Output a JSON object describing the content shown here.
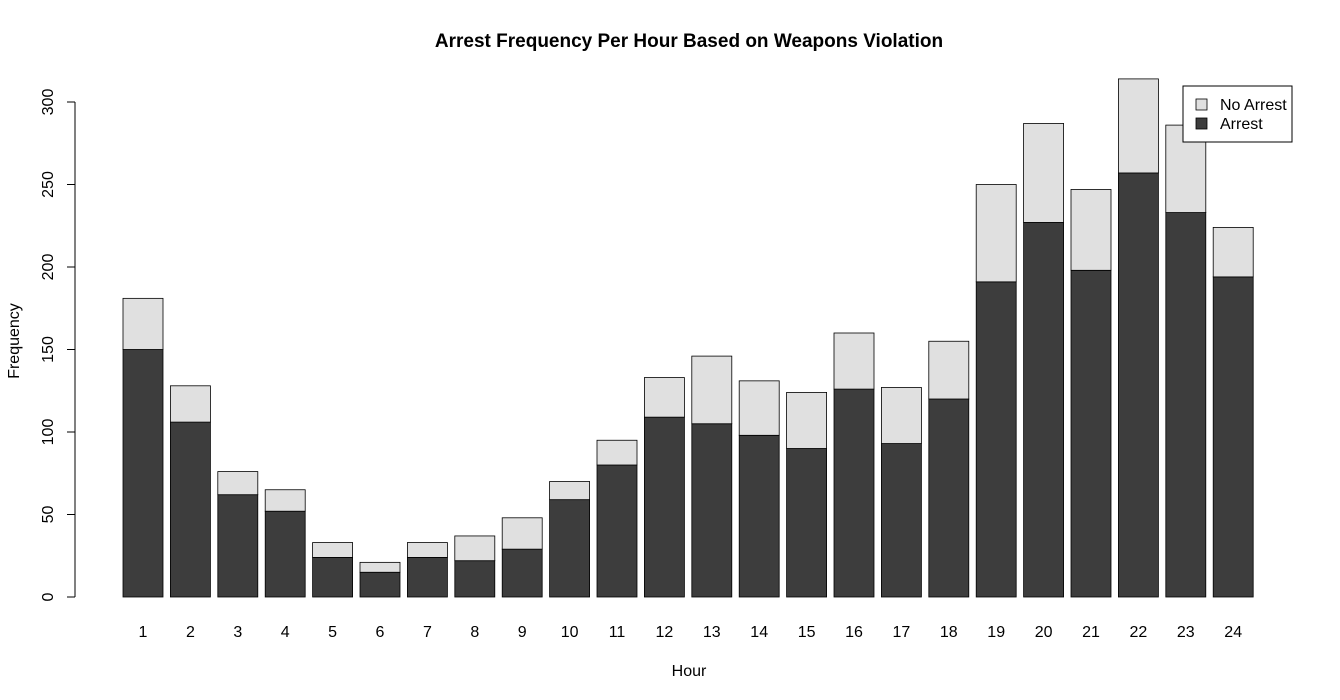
{
  "chart_data": {
    "type": "bar",
    "stacked": true,
    "title": "Arrest Frequency Per Hour Based on Weapons Violation",
    "xlabel": "Hour",
    "ylabel": "Frequency",
    "ylim": [
      0,
      315
    ],
    "yticks": [
      0,
      50,
      100,
      150,
      200,
      250,
      300
    ],
    "grid": false,
    "legend_position": "top-right",
    "categories": [
      "1",
      "2",
      "3",
      "4",
      "5",
      "6",
      "7",
      "8",
      "9",
      "10",
      "11",
      "12",
      "13",
      "14",
      "15",
      "16",
      "17",
      "18",
      "19",
      "20",
      "21",
      "22",
      "23",
      "24"
    ],
    "series": [
      {
        "name": "Arrest",
        "color": "#3d3d3d",
        "values": [
          150,
          106,
          62,
          52,
          24,
          15,
          24,
          22,
          29,
          59,
          80,
          109,
          105,
          98,
          90,
          126,
          93,
          120,
          191,
          227,
          198,
          257,
          233,
          194
        ]
      },
      {
        "name": "No Arrest",
        "color": "#e0e0e0",
        "values": [
          31,
          22,
          14,
          13,
          9,
          6,
          9,
          15,
          19,
          11,
          15,
          24,
          41,
          33,
          34,
          34,
          34,
          35,
          59,
          60,
          49,
          57,
          53,
          30
        ]
      }
    ],
    "legend": [
      {
        "label": "No Arrest",
        "color": "#e0e0e0"
      },
      {
        "label": "Arrest",
        "color": "#3d3d3d"
      }
    ]
  }
}
